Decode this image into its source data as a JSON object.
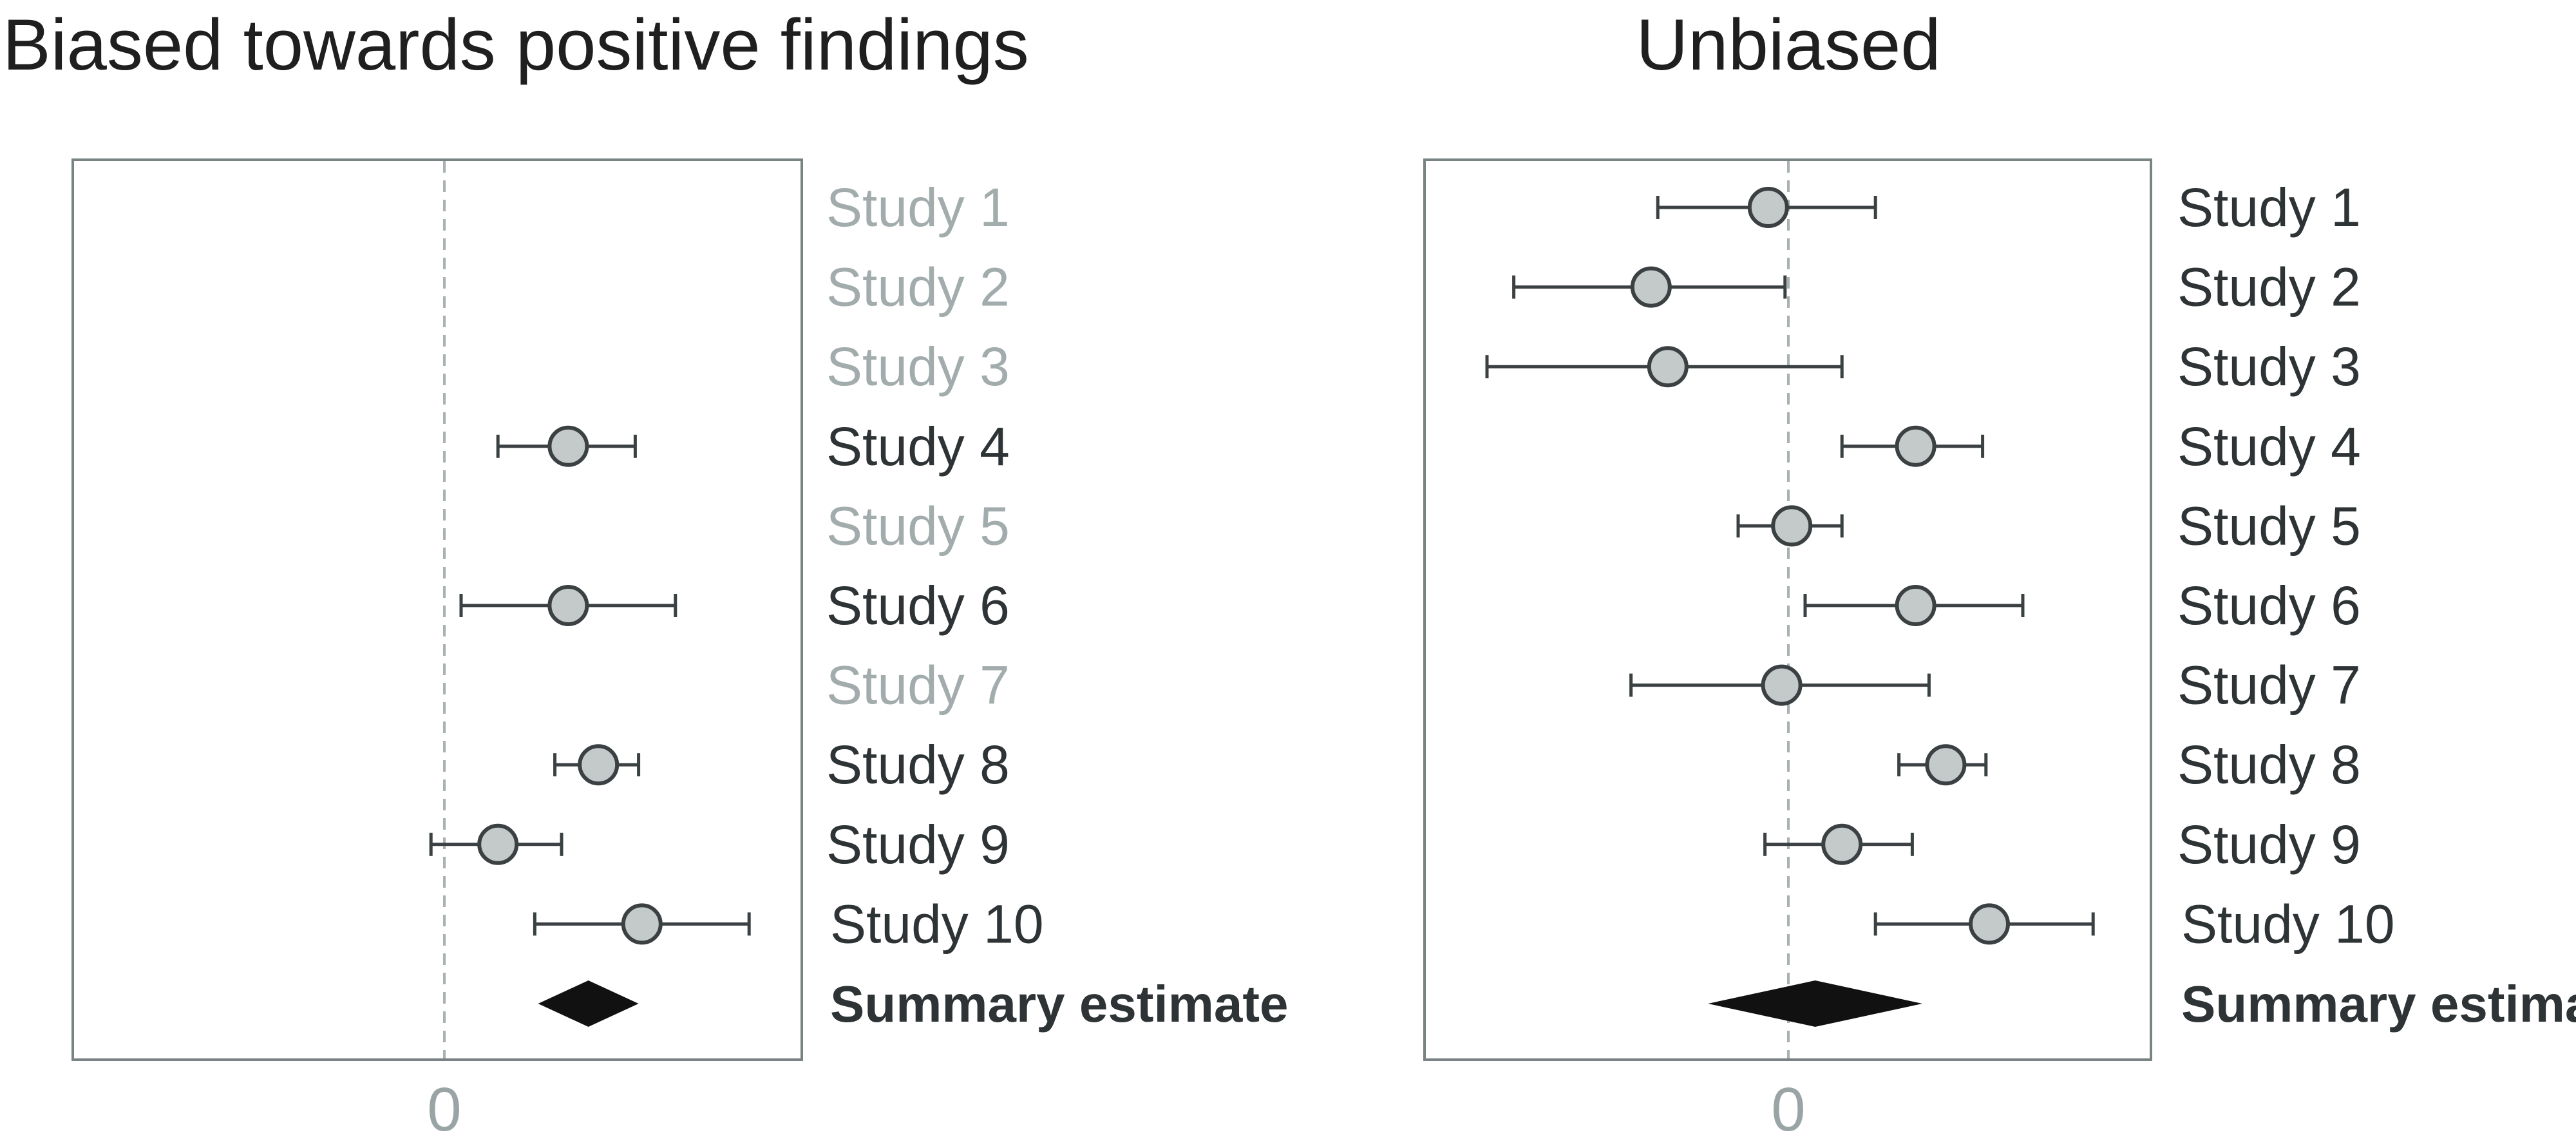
{
  "chart_data": [
    {
      "type": "forest",
      "title": "Biased towards positive findings",
      "zero_tick_label": "0",
      "xlim": [
        -1.0,
        1.0
      ],
      "reference_line_x": 0,
      "grid": false,
      "rows": [
        {
          "label": "Study 1",
          "shown": false,
          "estimate": null,
          "ci_low": null,
          "ci_high": null
        },
        {
          "label": "Study 2",
          "shown": false,
          "estimate": null,
          "ci_low": null,
          "ci_high": null
        },
        {
          "label": "Study 3",
          "shown": false,
          "estimate": null,
          "ci_low": null,
          "ci_high": null
        },
        {
          "label": "Study 4",
          "shown": true,
          "estimate": 0.37,
          "ci_low": 0.16,
          "ci_high": 0.57
        },
        {
          "label": "Study 5",
          "shown": false,
          "estimate": null,
          "ci_low": null,
          "ci_high": null
        },
        {
          "label": "Study 6",
          "shown": true,
          "estimate": 0.37,
          "ci_low": 0.05,
          "ci_high": 0.69
        },
        {
          "label": "Study 7",
          "shown": false,
          "estimate": null,
          "ci_low": null,
          "ci_high": null
        },
        {
          "label": "Study 8",
          "shown": true,
          "estimate": 0.46,
          "ci_low": 0.33,
          "ci_high": 0.58
        },
        {
          "label": "Study 9",
          "shown": true,
          "estimate": 0.16,
          "ci_low": -0.04,
          "ci_high": 0.35
        },
        {
          "label": "Study 10",
          "shown": true,
          "estimate": 0.59,
          "ci_low": 0.27,
          "ci_high": 0.91
        }
      ],
      "summary": {
        "label": "Summary estimate",
        "estimate": 0.43,
        "ci_low": 0.28,
        "ci_high": 0.58
      }
    },
    {
      "type": "forest",
      "title": "Unbiased",
      "zero_tick_label": "0",
      "xlim": [
        -1.0,
        1.0
      ],
      "reference_line_x": 0,
      "grid": false,
      "rows": [
        {
          "label": "Study 1",
          "shown": true,
          "estimate": -0.06,
          "ci_low": -0.39,
          "ci_high": 0.26
        },
        {
          "label": "Study 2",
          "shown": true,
          "estimate": -0.41,
          "ci_low": -0.82,
          "ci_high": -0.01
        },
        {
          "label": "Study 3",
          "shown": true,
          "estimate": -0.36,
          "ci_low": -0.9,
          "ci_high": 0.16
        },
        {
          "label": "Study 4",
          "shown": true,
          "estimate": 0.38,
          "ci_low": 0.16,
          "ci_high": 0.58
        },
        {
          "label": "Study 5",
          "shown": true,
          "estimate": 0.01,
          "ci_low": -0.15,
          "ci_high": 0.16
        },
        {
          "label": "Study 6",
          "shown": true,
          "estimate": 0.38,
          "ci_low": 0.05,
          "ci_high": 0.7
        },
        {
          "label": "Study 7",
          "shown": true,
          "estimate": -0.02,
          "ci_low": -0.47,
          "ci_high": 0.42
        },
        {
          "label": "Study 8",
          "shown": true,
          "estimate": 0.47,
          "ci_low": 0.33,
          "ci_high": 0.59
        },
        {
          "label": "Study 9",
          "shown": true,
          "estimate": 0.16,
          "ci_low": -0.07,
          "ci_high": 0.37
        },
        {
          "label": "Study 10",
          "shown": true,
          "estimate": 0.6,
          "ci_low": 0.26,
          "ci_high": 0.91
        }
      ],
      "summary": {
        "label": "Summary estimate",
        "estimate": 0.08,
        "ci_low": -0.24,
        "ci_high": 0.4
      }
    }
  ],
  "colors": {
    "title": "#1f1f1f",
    "frame": "#7a8383",
    "reference_line": "#a9b1b1",
    "ci_line": "#3b4042",
    "point_fill": "#c4c9c9",
    "point_stroke": "#3b4042",
    "label_shown": "#2e3335",
    "label_hidden": "#a3acac",
    "summary_diamond": "#111111",
    "tick_label": "#9aa4a4"
  }
}
